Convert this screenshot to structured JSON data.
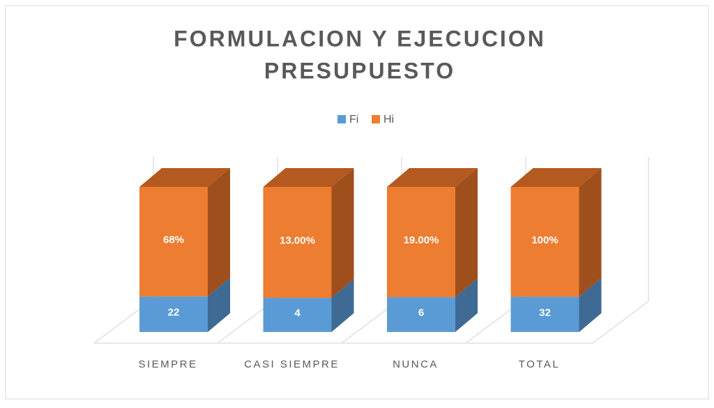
{
  "chart_data": {
    "type": "bar",
    "stacking": "percent",
    "depth3d": true,
    "title": [
      "FORMULACION Y EJECUCION",
      "PRESUPUESTO"
    ],
    "categories": [
      "SIEMPRE",
      "CASI SIEMPRE",
      "NUNCA",
      "TOTAL"
    ],
    "series": [
      {
        "name": "Fi",
        "color": "#5b9bd5",
        "side_color": "#3e6a94",
        "values": [
          22,
          4,
          6,
          32
        ]
      },
      {
        "name": "Hi",
        "color": "#ed7d31",
        "side_color": "#9e4f1c",
        "top_color": "#b45a20",
        "values": [
          68,
          13,
          19,
          100
        ],
        "value_labels": [
          "68%",
          "13.00%",
          "19.00%",
          "100%"
        ]
      }
    ],
    "legend": "top"
  }
}
